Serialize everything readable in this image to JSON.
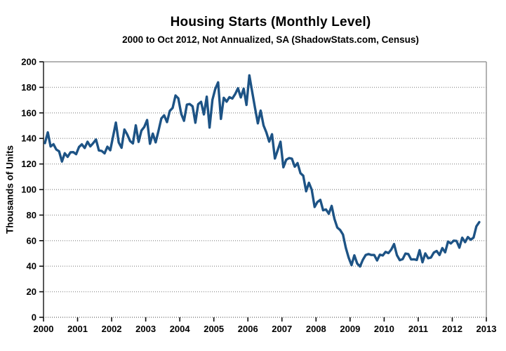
{
  "chart_data": {
    "type": "line",
    "title": "Housing Starts (Monthly Level)",
    "subtitle": "2000 to Oct 2012, Not Annualized, SA (ShadowStats.com, Census)",
    "xlabel": "",
    "ylabel": "Thousands of Units",
    "ylim": [
      0,
      200
    ],
    "xlim": [
      2000,
      2013
    ],
    "y_ticks": [
      0,
      20,
      40,
      60,
      80,
      100,
      120,
      140,
      160,
      180,
      200
    ],
    "x_ticks": [
      2000,
      2001,
      2002,
      2003,
      2004,
      2005,
      2006,
      2007,
      2008,
      2009,
      2010,
      2011,
      2012,
      2013
    ],
    "grid": "horizontal-dotted",
    "legend": "none",
    "colors": {
      "line": "#1d5385",
      "grid": "#9a9a9a",
      "border": "#9a9a9a",
      "axis": "#222222",
      "tick": "#111111"
    },
    "series": [
      {
        "name": "Housing Starts",
        "frequency": "monthly",
        "start": "2000-01",
        "end": "2012-10",
        "values": [
          136.3,
          144.8,
          133.7,
          135.5,
          131.3,
          129.9,
          121.9,
          128.4,
          125.6,
          129.1,
          129.3,
          127.7,
          133.3,
          135.4,
          132.5,
          137.4,
          133.8,
          136.3,
          139.2,
          130.6,
          130.2,
          128.3,
          133.5,
          130.7,
          141.5,
          152.4,
          136.8,
          132.7,
          147.0,
          143.1,
          137.9,
          136.1,
          150.3,
          137.3,
          146.1,
          149.0,
          154.4,
          135.8,
          143.8,
          136.9,
          145.9,
          155.6,
          158.1,
          152.8,
          161.6,
          163.9,
          173.6,
          171.4,
          159.3,
          153.8,
          166.5,
          166.9,
          165.1,
          152.3,
          166.8,
          168.7,
          158.8,
          172.7,
          148.5,
          170.2,
          178.7,
          183.9,
          155.3,
          171.8,
          168.8,
          172.3,
          171.2,
          174.6,
          179.3,
          172.1,
          178.9,
          166.2,
          189.4,
          176.6,
          164.1,
          151.8,
          161.8,
          150.2,
          144.8,
          137.5,
          143.3,
          124.3,
          130.8,
          137.4,
          117.4,
          123.3,
          124.6,
          124.2,
          117.9,
          120.7,
          112.8,
          110.8,
          98.6,
          105.3,
          99.8,
          86.4,
          90.3,
          91.9,
          83.8,
          84.4,
          81.1,
          87.2,
          76.9,
          70.3,
          68.3,
          64.8,
          54.3,
          46.7,
          40.8,
          48.5,
          42.1,
          39.8,
          45.0,
          48.8,
          49.5,
          48.8,
          48.8,
          44.5,
          49.0,
          48.4,
          51.2,
          50.3,
          53.0,
          57.3,
          48.6,
          44.7,
          45.5,
          49.9,
          49.5,
          45.3,
          45.4,
          44.9,
          52.5,
          43.1,
          50.0,
          46.2,
          46.8,
          50.7,
          51.9,
          48.8,
          54.2,
          50.8,
          59.3,
          57.8,
          60.0,
          59.8,
          54.5,
          62.3,
          58.8,
          62.8,
          60.7,
          62.4,
          71.2,
          74.5
        ]
      }
    ]
  }
}
